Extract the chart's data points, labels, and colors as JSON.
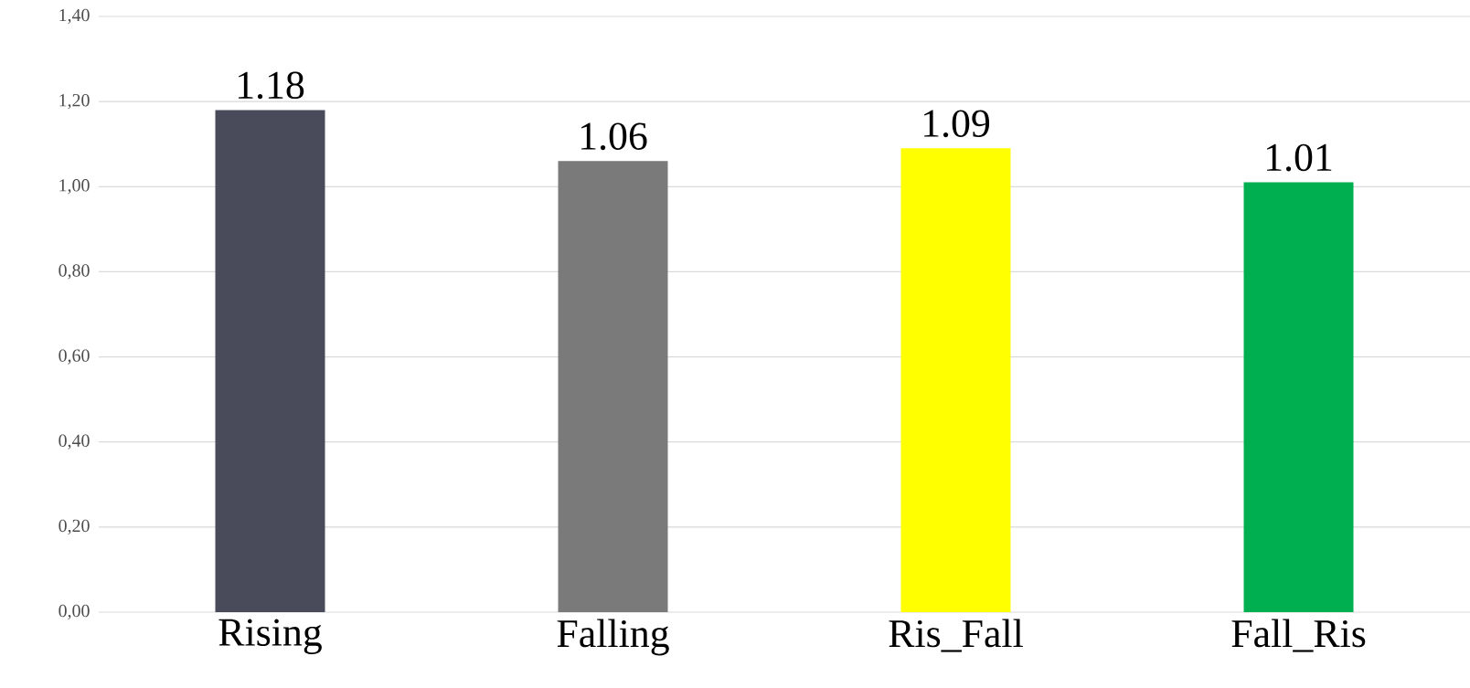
{
  "chart_data": {
    "type": "bar",
    "categories": [
      "Rising",
      "Falling",
      "Ris_Fall",
      "Fall_Ris"
    ],
    "values": [
      1.18,
      1.06,
      1.09,
      1.01
    ],
    "colors": [
      "#4a4b5a",
      "#7a7a7a",
      "#ffff00",
      "#00b050"
    ],
    "value_labels": [
      "1.18",
      "1.06",
      "1.09",
      "1.01"
    ],
    "ylim": [
      0,
      1.4
    ],
    "yticks": [
      {
        "value": 0,
        "label": "0,00"
      },
      {
        "value": 0.2,
        "label": "0,20"
      },
      {
        "value": 0.4,
        "label": "0,40"
      },
      {
        "value": 0.6,
        "label": "0,60"
      },
      {
        "value": 0.8,
        "label": "0,80"
      },
      {
        "value": 1.0,
        "label": "1,00"
      },
      {
        "value": 1.2,
        "label": "1,20"
      },
      {
        "value": 1.4,
        "label": "1,40"
      }
    ],
    "grid": "y"
  }
}
